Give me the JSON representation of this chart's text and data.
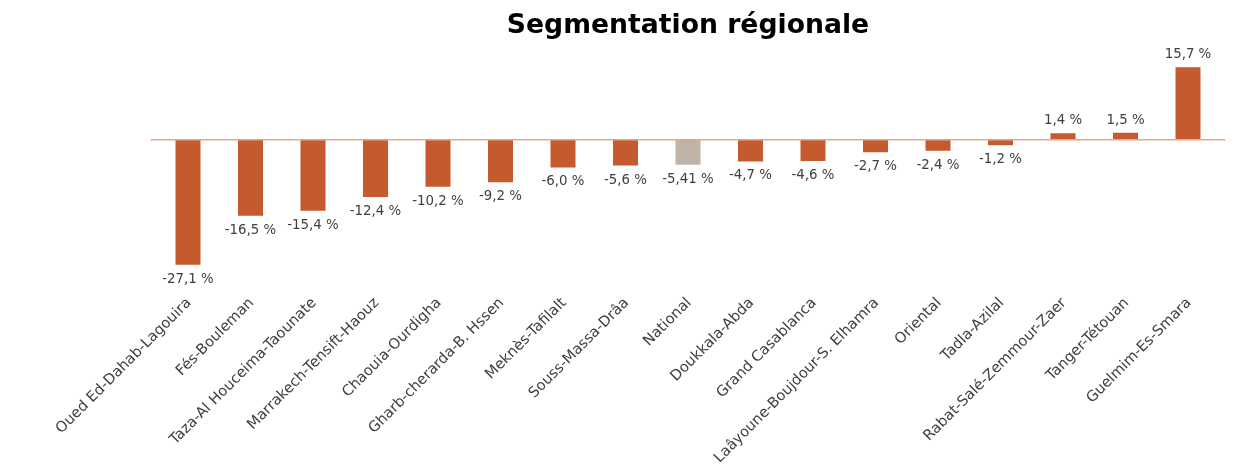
{
  "chart_data": {
    "type": "bar",
    "title": "Segmentation régionale",
    "categories": [
      "Oued Ed-Dahab-Lagouira",
      "Fés-Bouleman",
      "Taza-Al Houceima-Taounate",
      "Marrakech-Tensift-Haouz",
      "Chaouia-Ourdigha",
      "Gharb-cherarda-B. Hssen",
      "Meknès-Tafilalt",
      "Souss-Massa-Drâa",
      "National",
      "Doukkala-Abda",
      "Grand Casablanca",
      "Laâyoune-Boujdour-S. Elhamra",
      "Oriental",
      "Tadla-Azilal",
      "Rabat-Salé-Zemmour-Zaer",
      "Tanger-Tétouan",
      "Guelmim-Es-Smara"
    ],
    "values": [
      -27.1,
      -16.5,
      -15.4,
      -12.4,
      -10.2,
      -9.2,
      -6.0,
      -5.6,
      -5.41,
      -4.7,
      -4.6,
      -2.7,
      -2.4,
      -1.2,
      1.4,
      1.5,
      15.7
    ],
    "value_labels": [
      "-27,1 %",
      "-16,5 %",
      "-15,4 %",
      "-12,4 %",
      "-10,2 %",
      "-9,2 %",
      "-6,0 %",
      "-5,6 %",
      "-5,41 %",
      "-4,7 %",
      "-4,6 %",
      "-2,7 %",
      "-2,4 %",
      "-1,2 %",
      "1,4 %",
      "1,5 %",
      "15,7 %"
    ],
    "colors": [
      "#c55a2e",
      "#c55a2e",
      "#c55a2e",
      "#c55a2e",
      "#c55a2e",
      "#c55a2e",
      "#c55a2e",
      "#c55a2e",
      "#bfb3a6",
      "#c55a2e",
      "#c55a2e",
      "#c55a2e",
      "#c55a2e",
      "#c55a2e",
      "#c55a2e",
      "#c55a2e",
      "#c55a2e"
    ],
    "ref_lines": [
      {
        "axis": "y",
        "value": 0,
        "color": "#e8a58a"
      }
    ],
    "grid": false
  }
}
